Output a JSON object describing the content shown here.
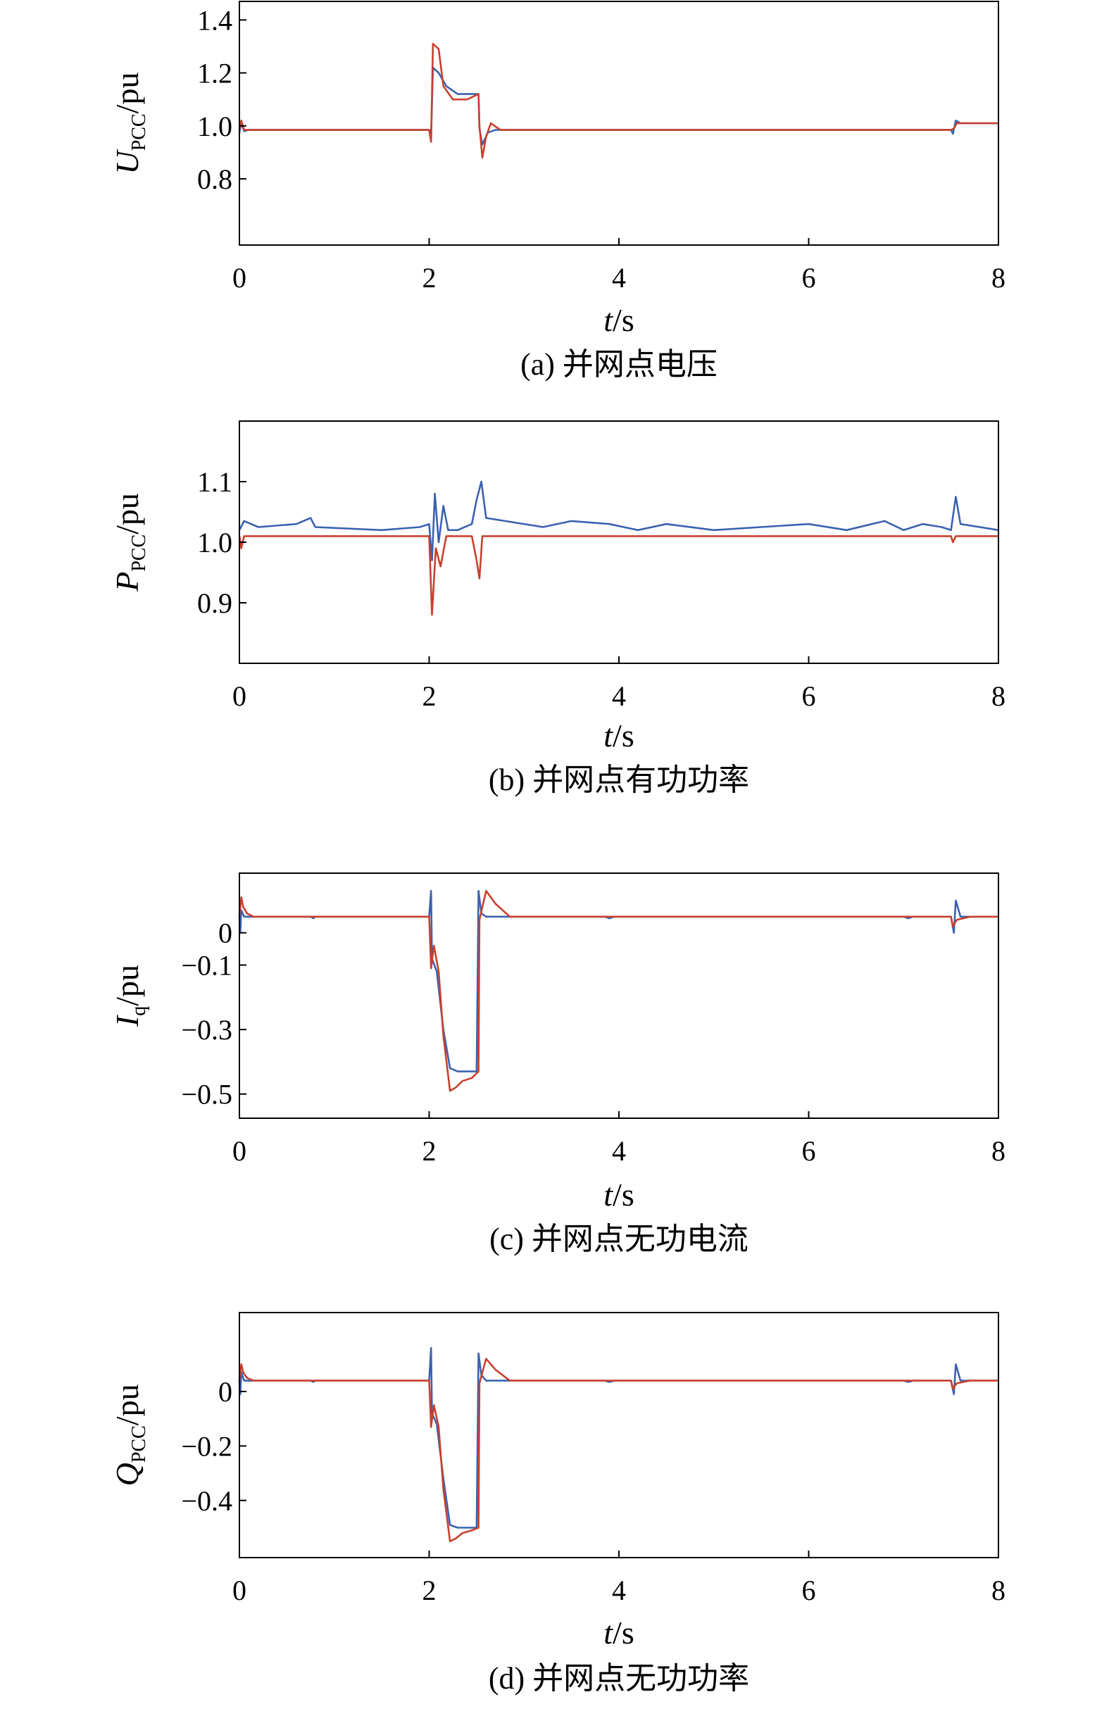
{
  "colors": {
    "series_blue": "#3b62b0",
    "series_red": "#c8402e"
  },
  "chart_data": [
    {
      "type": "line",
      "caption": "(a) 并网点电压",
      "ylabel": {
        "main": "U",
        "sub": "PCC",
        "unit": "/pu"
      },
      "xlabel": {
        "main": "t",
        "unit": "/s"
      },
      "xlim": [
        0,
        8
      ],
      "ylim": [
        0.55,
        1.47
      ],
      "xticks": [
        0,
        2,
        4,
        6,
        8
      ],
      "yticks": [
        0.8,
        1.0,
        1.2,
        1.4
      ],
      "ytick_labels": [
        "0.8",
        "1.0",
        "1.2",
        "1.4"
      ],
      "series": [
        {
          "color": "#3b62b0",
          "points": [
            [
              0,
              0.975
            ],
            [
              0.02,
              1.01
            ],
            [
              0.05,
              0.98
            ],
            [
              0.1,
              0.985
            ],
            [
              2.0,
              0.985
            ],
            [
              2.02,
              0.96
            ],
            [
              2.04,
              1.22
            ],
            [
              2.1,
              1.2
            ],
            [
              2.18,
              1.15
            ],
            [
              2.3,
              1.12
            ],
            [
              2.52,
              1.12
            ],
            [
              2.53,
              0.99
            ],
            [
              2.56,
              0.93
            ],
            [
              2.62,
              0.975
            ],
            [
              2.7,
              0.985
            ],
            [
              7.5,
              0.985
            ],
            [
              7.52,
              0.97
            ],
            [
              7.55,
              1.02
            ],
            [
              7.6,
              1.01
            ],
            [
              8,
              1.01
            ]
          ]
        },
        {
          "color": "#c8402e",
          "points": [
            [
              0,
              0.985
            ],
            [
              0.02,
              1.02
            ],
            [
              0.05,
              0.985
            ],
            [
              2.0,
              0.985
            ],
            [
              2.02,
              0.94
            ],
            [
              2.04,
              1.31
            ],
            [
              2.1,
              1.29
            ],
            [
              2.15,
              1.15
            ],
            [
              2.25,
              1.1
            ],
            [
              2.4,
              1.1
            ],
            [
              2.52,
              1.12
            ],
            [
              2.53,
              1.0
            ],
            [
              2.56,
              0.88
            ],
            [
              2.6,
              0.96
            ],
            [
              2.65,
              1.01
            ],
            [
              2.75,
              0.985
            ],
            [
              7.5,
              0.985
            ],
            [
              7.53,
              0.99
            ],
            [
              7.56,
              1.01
            ],
            [
              8,
              1.01
            ]
          ]
        }
      ]
    },
    {
      "type": "line",
      "caption": "(b) 并网点有功功率",
      "ylabel": {
        "main": "P",
        "sub": "PCC",
        "unit": "/pu"
      },
      "xlabel": {
        "main": "t",
        "unit": "/s"
      },
      "xlim": [
        0,
        8
      ],
      "ylim": [
        0.8,
        1.2
      ],
      "xticks": [
        0,
        2,
        4,
        6,
        8
      ],
      "yticks": [
        0.9,
        1.0,
        1.1
      ],
      "ytick_labels": [
        "0.9",
        "1.0",
        "1.1"
      ],
      "series": [
        {
          "color": "#3b62b0",
          "points": [
            [
              0,
              1.02
            ],
            [
              0.05,
              1.035
            ],
            [
              0.2,
              1.025
            ],
            [
              0.6,
              1.03
            ],
            [
              0.75,
              1.04
            ],
            [
              0.8,
              1.025
            ],
            [
              1.5,
              1.02
            ],
            [
              1.9,
              1.025
            ],
            [
              2.0,
              1.03
            ],
            [
              2.03,
              0.97
            ],
            [
              2.06,
              1.08
            ],
            [
              2.1,
              1.0
            ],
            [
              2.15,
              1.06
            ],
            [
              2.2,
              1.02
            ],
            [
              2.3,
              1.02
            ],
            [
              2.45,
              1.03
            ],
            [
              2.5,
              1.07
            ],
            [
              2.55,
              1.1
            ],
            [
              2.6,
              1.04
            ],
            [
              2.8,
              1.035
            ],
            [
              3.2,
              1.025
            ],
            [
              3.5,
              1.035
            ],
            [
              3.9,
              1.03
            ],
            [
              4.2,
              1.02
            ],
            [
              4.5,
              1.03
            ],
            [
              5.0,
              1.02
            ],
            [
              5.5,
              1.025
            ],
            [
              6.0,
              1.03
            ],
            [
              6.4,
              1.02
            ],
            [
              6.8,
              1.035
            ],
            [
              7.0,
              1.02
            ],
            [
              7.2,
              1.03
            ],
            [
              7.4,
              1.025
            ],
            [
              7.5,
              1.02
            ],
            [
              7.55,
              1.075
            ],
            [
              7.6,
              1.03
            ],
            [
              8,
              1.02
            ]
          ]
        },
        {
          "color": "#c8402e",
          "points": [
            [
              0,
              1.01
            ],
            [
              0.02,
              0.99
            ],
            [
              0.05,
              1.01
            ],
            [
              2.0,
              1.01
            ],
            [
              2.03,
              0.88
            ],
            [
              2.07,
              0.99
            ],
            [
              2.12,
              0.96
            ],
            [
              2.18,
              1.01
            ],
            [
              2.45,
              1.01
            ],
            [
              2.5,
              0.97
            ],
            [
              2.53,
              0.94
            ],
            [
              2.56,
              1.01
            ],
            [
              7.5,
              1.01
            ],
            [
              7.52,
              1.0
            ],
            [
              7.55,
              1.01
            ],
            [
              8,
              1.01
            ]
          ]
        }
      ]
    },
    {
      "type": "line",
      "caption": "(c) 并网点无功电流",
      "ylabel": {
        "main": "I",
        "sub": "q",
        "unit": "/pu"
      },
      "xlabel": {
        "main": "t",
        "unit": "/s"
      },
      "xlim": [
        0,
        8
      ],
      "ylim": [
        -0.575,
        0.185
      ],
      "xticks": [
        0,
        2,
        4,
        6,
        8
      ],
      "yticks": [
        0,
        -0.1,
        -0.3,
        -0.5
      ],
      "ytick_labels": [
        "0",
        "−0.1",
        "−0.3",
        "−0.5"
      ],
      "series": [
        {
          "color": "#3b62b0",
          "points": [
            [
              0,
              0.05
            ],
            [
              0.01,
              0.0
            ],
            [
              0.02,
              0.07
            ],
            [
              0.05,
              0.05
            ],
            [
              0.75,
              0.05
            ],
            [
              0.78,
              0.045
            ],
            [
              0.8,
              0.05
            ],
            [
              2.0,
              0.05
            ],
            [
              2.02,
              0.13
            ],
            [
              2.03,
              -0.08
            ],
            [
              2.08,
              -0.12
            ],
            [
              2.15,
              -0.3
            ],
            [
              2.22,
              -0.42
            ],
            [
              2.3,
              -0.43
            ],
            [
              2.5,
              -0.43
            ],
            [
              2.52,
              0.13
            ],
            [
              2.55,
              0.06
            ],
            [
              2.6,
              0.05
            ],
            [
              3.85,
              0.05
            ],
            [
              3.9,
              0.045
            ],
            [
              3.95,
              0.05
            ],
            [
              7.0,
              0.05
            ],
            [
              7.05,
              0.045
            ],
            [
              7.1,
              0.05
            ],
            [
              7.5,
              0.05
            ],
            [
              7.53,
              0.0
            ],
            [
              7.55,
              0.1
            ],
            [
              7.6,
              0.05
            ],
            [
              8,
              0.05
            ]
          ]
        },
        {
          "color": "#c8402e",
          "points": [
            [
              0,
              0.05
            ],
            [
              0.02,
              0.11
            ],
            [
              0.04,
              0.08
            ],
            [
              0.08,
              0.06
            ],
            [
              0.15,
              0.05
            ],
            [
              2.0,
              0.05
            ],
            [
              2.02,
              -0.11
            ],
            [
              2.05,
              -0.04
            ],
            [
              2.1,
              -0.12
            ],
            [
              2.15,
              -0.32
            ],
            [
              2.22,
              -0.49
            ],
            [
              2.28,
              -0.48
            ],
            [
              2.35,
              -0.46
            ],
            [
              2.45,
              -0.45
            ],
            [
              2.52,
              -0.43
            ],
            [
              2.53,
              0.04
            ],
            [
              2.56,
              0.08
            ],
            [
              2.6,
              0.13
            ],
            [
              2.7,
              0.09
            ],
            [
              2.85,
              0.05
            ],
            [
              7.5,
              0.05
            ],
            [
              7.52,
              0.02
            ],
            [
              7.56,
              0.04
            ],
            [
              7.7,
              0.05
            ],
            [
              8,
              0.05
            ]
          ]
        }
      ]
    },
    {
      "type": "line",
      "caption": "(d) 并网点无功功率",
      "ylabel": {
        "main": "Q",
        "sub": "PCC",
        "unit": "/pu"
      },
      "xlabel": {
        "main": "t",
        "unit": "/s"
      },
      "xlim": [
        0,
        8
      ],
      "ylim": [
        -0.61,
        0.29
      ],
      "xticks": [
        0,
        2,
        4,
        6,
        8
      ],
      "yticks": [
        0,
        -0.2,
        -0.4
      ],
      "ytick_labels": [
        "0",
        "−0.2",
        "−0.4"
      ],
      "series": [
        {
          "color": "#3b62b0",
          "points": [
            [
              0,
              0.04
            ],
            [
              0.01,
              -0.01
            ],
            [
              0.02,
              0.07
            ],
            [
              0.05,
              0.04
            ],
            [
              0.75,
              0.04
            ],
            [
              0.78,
              0.035
            ],
            [
              0.8,
              0.04
            ],
            [
              2.0,
              0.04
            ],
            [
              2.02,
              0.16
            ],
            [
              2.03,
              -0.08
            ],
            [
              2.08,
              -0.12
            ],
            [
              2.15,
              -0.32
            ],
            [
              2.22,
              -0.49
            ],
            [
              2.3,
              -0.5
            ],
            [
              2.5,
              -0.5
            ],
            [
              2.52,
              0.14
            ],
            [
              2.55,
              0.06
            ],
            [
              2.6,
              0.04
            ],
            [
              3.85,
              0.04
            ],
            [
              3.9,
              0.035
            ],
            [
              3.95,
              0.04
            ],
            [
              7.0,
              0.04
            ],
            [
              7.05,
              0.035
            ],
            [
              7.1,
              0.04
            ],
            [
              7.5,
              0.04
            ],
            [
              7.53,
              -0.01
            ],
            [
              7.55,
              0.1
            ],
            [
              7.6,
              0.04
            ],
            [
              8,
              0.04
            ]
          ]
        },
        {
          "color": "#c8402e",
          "points": [
            [
              0,
              0.04
            ],
            [
              0.02,
              0.1
            ],
            [
              0.04,
              0.07
            ],
            [
              0.08,
              0.05
            ],
            [
              0.15,
              0.04
            ],
            [
              2.0,
              0.04
            ],
            [
              2.02,
              -0.13
            ],
            [
              2.05,
              -0.05
            ],
            [
              2.1,
              -0.13
            ],
            [
              2.15,
              -0.36
            ],
            [
              2.22,
              -0.55
            ],
            [
              2.28,
              -0.54
            ],
            [
              2.35,
              -0.52
            ],
            [
              2.45,
              -0.51
            ],
            [
              2.52,
              -0.5
            ],
            [
              2.53,
              0.03
            ],
            [
              2.56,
              0.07
            ],
            [
              2.6,
              0.12
            ],
            [
              2.7,
              0.08
            ],
            [
              2.85,
              0.04
            ],
            [
              7.5,
              0.04
            ],
            [
              7.52,
              0.01
            ],
            [
              7.56,
              0.03
            ],
            [
              7.7,
              0.04
            ],
            [
              8,
              0.04
            ]
          ]
        }
      ]
    }
  ]
}
